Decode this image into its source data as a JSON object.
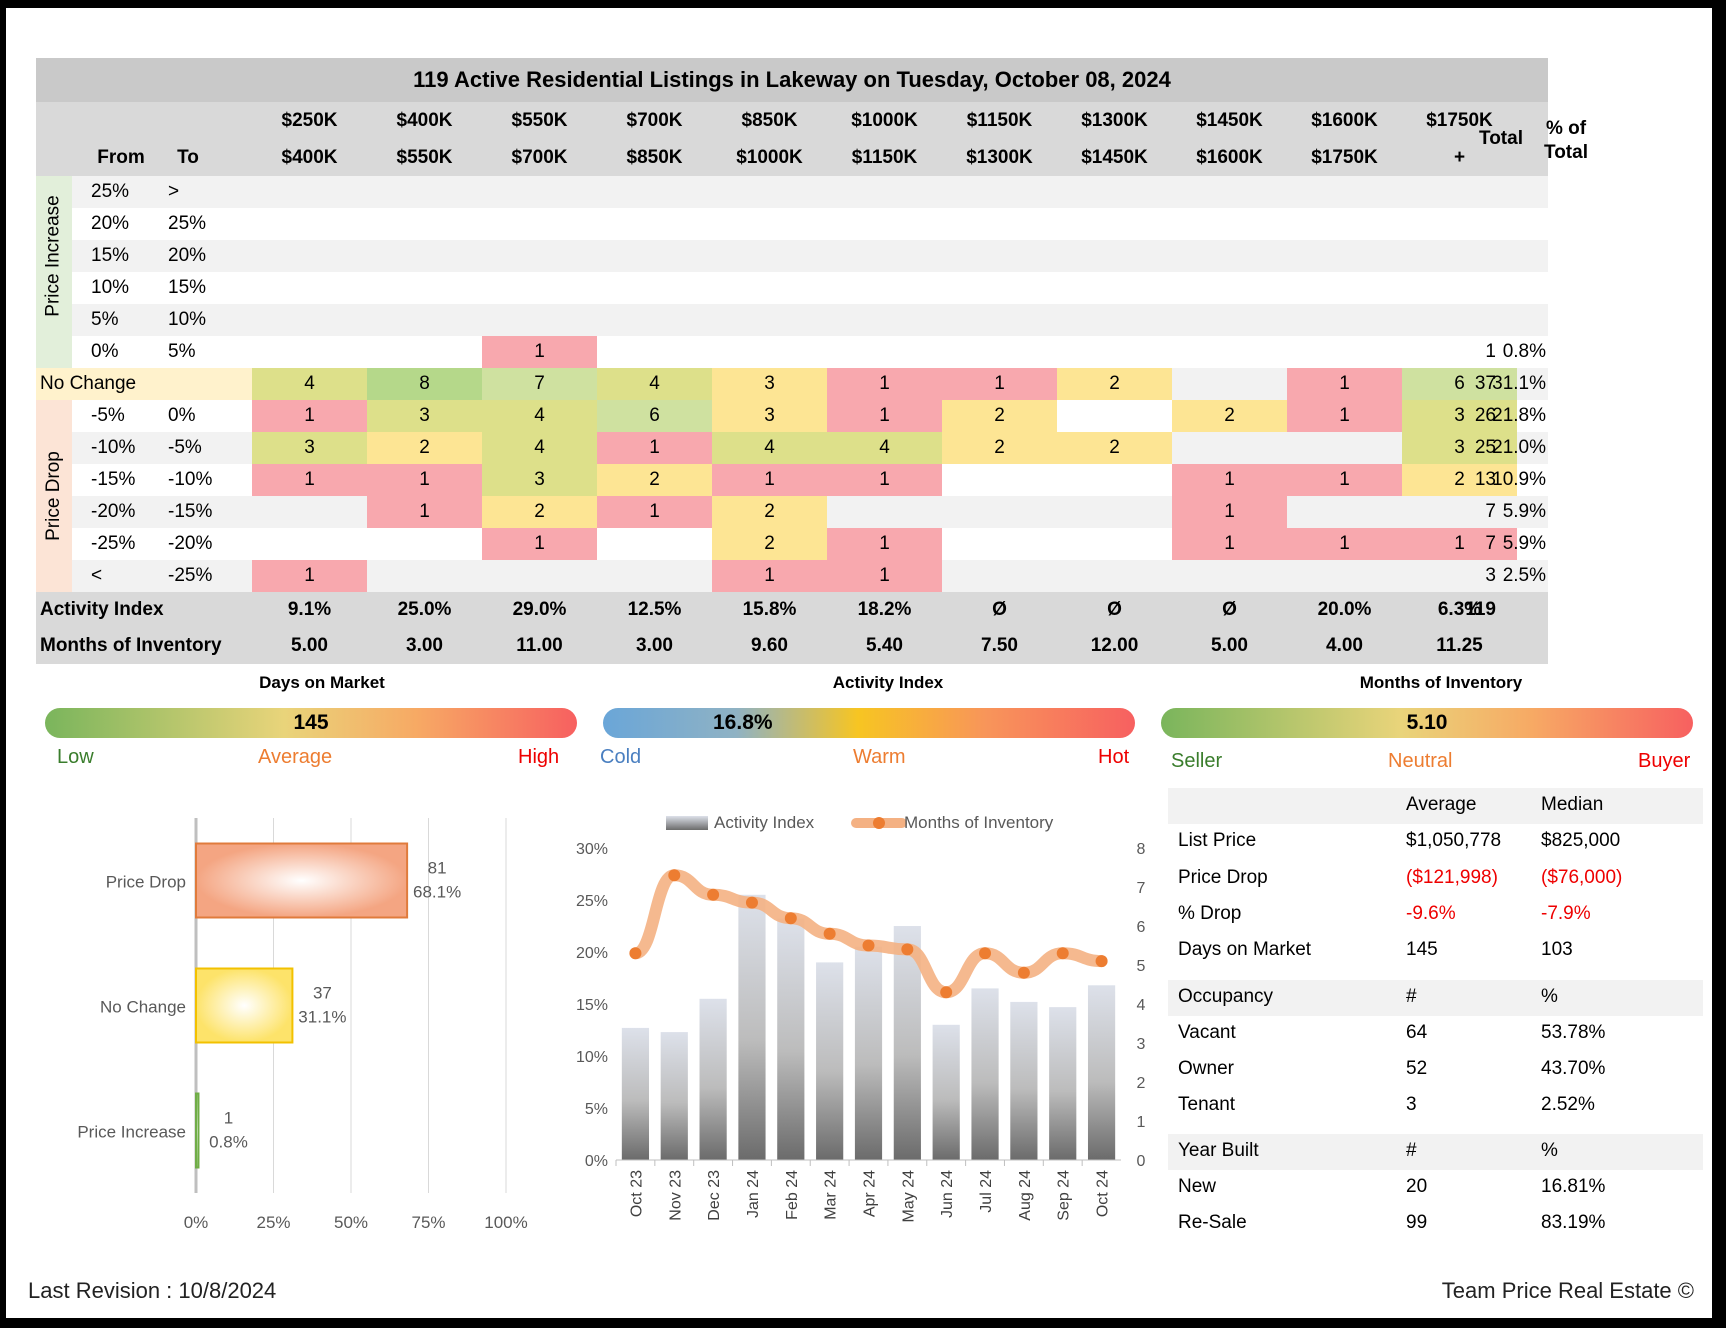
{
  "title": "119 Active Residential Listings in Lakeway on Tuesday, October 08, 2024",
  "header": {
    "from": "From",
    "to": "To",
    "ranges_top": [
      "$250K",
      "$400K",
      "$550K",
      "$700K",
      "$850K",
      "$1000K",
      "$1150K",
      "$1300K",
      "$1450K",
      "$1600K",
      "$1750K"
    ],
    "ranges_bottom": [
      "$400K",
      "$550K",
      "$700K",
      "$850K",
      "$1000K",
      "$1150K",
      "$1300K",
      "$1450K",
      "$1600K",
      "$1750K",
      "+"
    ],
    "total": "Total",
    "pct_total_1": "% of",
    "pct_total_2": "Total"
  },
  "groups": {
    "increase": "Price Increase",
    "drop": "Price Drop",
    "no_change": "No Change"
  },
  "rows": [
    {
      "from": "25%",
      "to": ">",
      "cells": [
        "",
        "",
        "",
        "",
        "",
        "",
        "",
        "",
        "",
        "",
        ""
      ],
      "total": "",
      "pct": ""
    },
    {
      "from": "20%",
      "to": "25%",
      "cells": [
        "",
        "",
        "",
        "",
        "",
        "",
        "",
        "",
        "",
        "",
        ""
      ],
      "total": "",
      "pct": ""
    },
    {
      "from": "15%",
      "to": "20%",
      "cells": [
        "",
        "",
        "",
        "",
        "",
        "",
        "",
        "",
        "",
        "",
        ""
      ],
      "total": "",
      "pct": ""
    },
    {
      "from": "10%",
      "to": "15%",
      "cells": [
        "",
        "",
        "",
        "",
        "",
        "",
        "",
        "",
        "",
        "",
        ""
      ],
      "total": "",
      "pct": ""
    },
    {
      "from": "5%",
      "to": "10%",
      "cells": [
        "",
        "",
        "",
        "",
        "",
        "",
        "",
        "",
        "",
        "",
        ""
      ],
      "total": "",
      "pct": ""
    },
    {
      "from": "0%",
      "to": "5%",
      "cells": [
        "",
        "",
        "1",
        "",
        "",
        "",
        "",
        "",
        "",
        "",
        ""
      ],
      "total": "1",
      "pct": "0.8%"
    },
    {
      "from": "No Change",
      "to": "",
      "cells": [
        "4",
        "8",
        "7",
        "4",
        "3",
        "1",
        "1",
        "2",
        "",
        "1",
        "6"
      ],
      "total": "37",
      "pct": "31.1%"
    },
    {
      "from": "-5%",
      "to": "0%",
      "cells": [
        "1",
        "3",
        "4",
        "6",
        "3",
        "1",
        "2",
        "",
        "2",
        "1",
        "3"
      ],
      "total": "26",
      "pct": "21.8%"
    },
    {
      "from": "-10%",
      "to": "-5%",
      "cells": [
        "3",
        "2",
        "4",
        "1",
        "4",
        "4",
        "2",
        "2",
        "",
        "",
        "3"
      ],
      "total": "25",
      "pct": "21.0%"
    },
    {
      "from": "-15%",
      "to": "-10%",
      "cells": [
        "1",
        "1",
        "3",
        "2",
        "1",
        "1",
        "",
        "",
        "1",
        "1",
        "2"
      ],
      "total": "13",
      "pct": "10.9%"
    },
    {
      "from": "-20%",
      "to": "-15%",
      "cells": [
        "",
        "1",
        "2",
        "1",
        "2",
        "",
        "",
        "",
        "1",
        "",
        ""
      ],
      "total": "7",
      "pct": "5.9%"
    },
    {
      "from": "-25%",
      "to": "-20%",
      "cells": [
        "",
        "",
        "1",
        "",
        "2",
        "1",
        "",
        "",
        "1",
        "1",
        "1"
      ],
      "total": "7",
      "pct": "5.9%"
    },
    {
      "from": "<",
      "to": "-25%",
      "cells": [
        "1",
        "",
        "",
        "",
        "1",
        "1",
        "",
        "",
        "",
        "",
        ""
      ],
      "total": "3",
      "pct": "2.5%"
    }
  ],
  "cell_colors": {
    "red": "#f8a8ae",
    "yellow": "#fde594",
    "olive": "#dde08a",
    "green": "#b5d88a",
    "lightgreen": "#cfe1a0",
    "stripe": "#f2f2f2",
    "header_bg": "#d9d9d9",
    "title_bg": "#c9c9c9",
    "increase_tab": "#e2efda",
    "drop_tab": "#fce4d6",
    "nochange_tab": "#fff2cc"
  },
  "activity_row": {
    "label": "Activity Index",
    "values": [
      "9.1%",
      "25.0%",
      "29.0%",
      "12.5%",
      "15.8%",
      "18.2%",
      "Ø",
      "Ø",
      "Ø",
      "20.0%",
      "6.3%"
    ],
    "total": "119"
  },
  "inventory_row": {
    "label": "Months of Inventory",
    "values": [
      "5.00",
      "3.00",
      "11.00",
      "3.00",
      "9.60",
      "5.40",
      "7.50",
      "12.00",
      "5.00",
      "4.00",
      "11.25"
    ]
  },
  "gauges": [
    {
      "title": "Days on Market",
      "value": "145",
      "low": "Low",
      "mid": "Average",
      "high": "High"
    },
    {
      "title": "Activity Index",
      "value": "16.8%",
      "low": "Cold",
      "mid": "Warm",
      "high": "Hot"
    },
    {
      "title": "Months of Inventory",
      "value": "5.10",
      "low": "Seller",
      "mid": "Neutral",
      "high": "Buyer"
    }
  ],
  "stats": {
    "col_avg": "Average",
    "col_median": "Median",
    "rows": [
      {
        "label": "List Price",
        "avg": "$1,050,778",
        "median": "$825,000"
      },
      {
        "label": "Price Drop",
        "avg": "($121,998)",
        "median": "($76,000)"
      },
      {
        "label": "% Drop",
        "avg": "-9.6%",
        "median": "-7.9%"
      },
      {
        "label": "Days on Market",
        "avg": "145",
        "median": "103"
      }
    ],
    "occupancy": {
      "label": "Occupancy",
      "c1": "#",
      "c2": "%",
      "rows": [
        {
          "label": "Vacant",
          "n": "64",
          "pct": "53.78%"
        },
        {
          "label": "Owner",
          "n": "52",
          "pct": "43.70%"
        },
        {
          "label": "Tenant",
          "n": "3",
          "pct": "2.52%"
        }
      ]
    },
    "year_built": {
      "label": "Year Built",
      "c1": "#",
      "c2": "%",
      "rows": [
        {
          "label": "New",
          "n": "20",
          "pct": "16.81%"
        },
        {
          "label": "Re-Sale",
          "n": "99",
          "pct": "83.19%"
        }
      ]
    }
  },
  "chart_data": [
    {
      "type": "bar",
      "orientation": "horizontal",
      "categories": [
        "Price Drop",
        "No Change",
        "Price Increase"
      ],
      "values": [
        68.1,
        31.1,
        0.8
      ],
      "counts": [
        "81",
        "37",
        "1"
      ],
      "labels": [
        "68.1%",
        "31.1%",
        "0.8%"
      ],
      "colors": [
        "#f4a582",
        "#fde36a",
        "#8cc06a"
      ],
      "xlim": [
        0,
        100
      ],
      "xticks": [
        "0%",
        "25%",
        "50%",
        "75%",
        "100%"
      ]
    },
    {
      "type": "bar",
      "categories": [
        "Oct 23",
        "Nov 23",
        "Dec 23",
        "Jan 24",
        "Feb 24",
        "Mar 24",
        "Apr 24",
        "May 24",
        "Jun 24",
        "Jul 24",
        "Aug 24",
        "Sep 24",
        "Oct 24"
      ],
      "series": [
        {
          "name": "Activity Index",
          "axis": "left",
          "values": [
            12.7,
            12.3,
            15.5,
            25.5,
            23.2,
            19.0,
            20.5,
            22.5,
            13.0,
            16.5,
            15.2,
            14.7,
            16.8
          ]
        },
        {
          "name": "Months of Inventory",
          "axis": "right",
          "type": "line",
          "values": [
            5.3,
            7.3,
            6.8,
            6.6,
            6.2,
            5.8,
            5.5,
            5.4,
            4.3,
            5.3,
            4.8,
            5.3,
            5.1
          ]
        }
      ],
      "ylim_left": [
        0,
        30
      ],
      "yticks_left": [
        "0%",
        "5%",
        "10%",
        "15%",
        "20%",
        "25%",
        "30%"
      ],
      "ylim_right": [
        0,
        8
      ],
      "yticks_right": [
        "0",
        "1",
        "2",
        "3",
        "4",
        "5",
        "6",
        "7",
        "8"
      ],
      "legend_position": "top"
    }
  ],
  "footer": {
    "revision": "Last Revision : 10/8/2024",
    "brand": "Team Price Real Estate ©"
  }
}
